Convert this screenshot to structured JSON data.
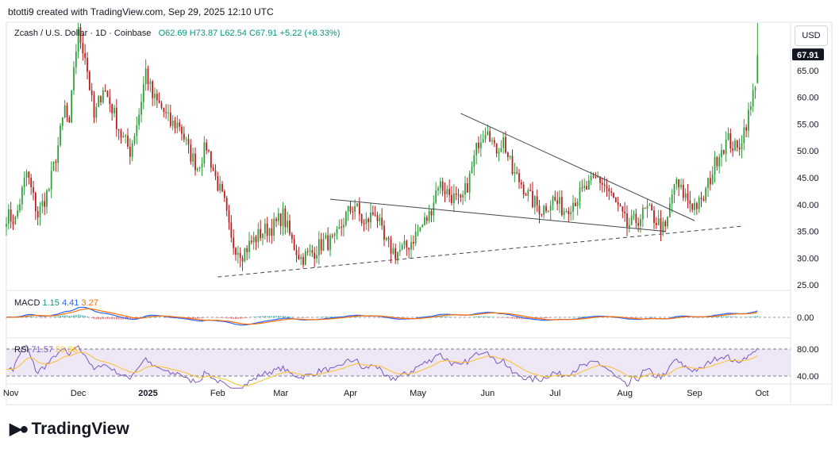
{
  "header": {
    "attribution": "btotti9 created with TradingView.com, Sep 29, 2025 12:10 UTC"
  },
  "legend": {
    "symbol": "Zcash / U.S. Dollar · 1D · Coinbase",
    "open": "O62.69",
    "high": "H73.87",
    "low": "L62.54",
    "close": "C67.91",
    "change": "+5.22 (+8.33%)"
  },
  "currency": "USD",
  "macd": {
    "label": "MACD",
    "v1": "1.15",
    "v2": "4.41",
    "v3": "3.27",
    "zero_label": "0.00"
  },
  "rsi": {
    "label": "RSI",
    "v1": "71.57",
    "v2": "59.36",
    "upper_label": "80.00",
    "lower_label": "40.00"
  },
  "footer": {
    "brand": "TradingView"
  },
  "colors": {
    "up": "#089981",
    "down": "#f23645",
    "candle_up": "#2e9e3a",
    "candle_down": "#b71c1c",
    "macd_line": "#2962ff",
    "signal_line": "#ff6d00",
    "rsi_line": "#7e57c2",
    "rsi_ma": "#fbc02d",
    "rsi_band": "#ede7f6",
    "price_tag": "#131722"
  },
  "chart_data": {
    "type": "candlestick",
    "title": "Zcash / U.S. Dollar · 1D · Coinbase",
    "y_ticks": [
      65,
      60,
      55,
      50,
      45,
      40,
      35,
      30,
      25
    ],
    "y_tick_labels": [
      "65.00",
      "60.00",
      "55.00",
      "50.00",
      "45.00",
      "40.00",
      "35.00",
      "30.00",
      "25.00"
    ],
    "ylim": [
      24,
      74
    ],
    "last_price_label": "67.91",
    "x_tick_labels": [
      "Nov",
      "Dec",
      "2025",
      "Feb",
      "Mar",
      "Apr",
      "May",
      "Jun",
      "Jul",
      "Aug",
      "Sep",
      "Oct"
    ],
    "x_ticks": [
      "2024-11-01",
      "2024-12-01",
      "2025-01-01",
      "2025-02-01",
      "2025-03-01",
      "2025-04-01",
      "2025-05-01",
      "2025-06-01",
      "2025-07-01",
      "2025-08-01",
      "2025-09-01",
      "2025-10-01"
    ],
    "x_range": [
      "2024-10-30",
      "2025-10-13"
    ],
    "close_path": [
      [
        "2024-10-30",
        38
      ],
      [
        "2024-11-03",
        37
      ],
      [
        "2024-11-08",
        46
      ],
      [
        "2024-11-13",
        38
      ],
      [
        "2024-11-18",
        43
      ],
      [
        "2024-11-22",
        51
      ],
      [
        "2024-11-25",
        58
      ],
      [
        "2024-11-27",
        54
      ],
      [
        "2024-11-29",
        66
      ],
      [
        "2024-12-01",
        72
      ],
      [
        "2024-12-04",
        68
      ],
      [
        "2024-12-08",
        56
      ],
      [
        "2024-12-12",
        62
      ],
      [
        "2024-12-16",
        58
      ],
      [
        "2024-12-20",
        53
      ],
      [
        "2024-12-24",
        50
      ],
      [
        "2024-12-28",
        57
      ],
      [
        "2024-12-31",
        65
      ],
      [
        "2025-01-03",
        60
      ],
      [
        "2025-01-07",
        58
      ],
      [
        "2025-01-11",
        55
      ],
      [
        "2025-01-15",
        55
      ],
      [
        "2025-01-19",
        50
      ],
      [
        "2025-01-23",
        47
      ],
      [
        "2025-01-27",
        51
      ],
      [
        "2025-01-31",
        45
      ],
      [
        "2025-02-04",
        40
      ],
      [
        "2025-02-07",
        33
      ],
      [
        "2025-02-12",
        31
      ],
      [
        "2025-02-16",
        33
      ],
      [
        "2025-02-21",
        35
      ],
      [
        "2025-02-26",
        36
      ],
      [
        "2025-03-02",
        38
      ],
      [
        "2025-03-06",
        33
      ],
      [
        "2025-03-10",
        30
      ],
      [
        "2025-03-15",
        31
      ],
      [
        "2025-03-20",
        33
      ],
      [
        "2025-03-25",
        33
      ],
      [
        "2025-03-30",
        38
      ],
      [
        "2025-04-03",
        40
      ],
      [
        "2025-04-07",
        36
      ],
      [
        "2025-04-12",
        39
      ],
      [
        "2025-04-16",
        33
      ],
      [
        "2025-04-21",
        31
      ],
      [
        "2025-04-26",
        32
      ],
      [
        "2025-05-01",
        35
      ],
      [
        "2025-05-06",
        38
      ],
      [
        "2025-05-10",
        44
      ],
      [
        "2025-05-15",
        42
      ],
      [
        "2025-05-20",
        40
      ],
      [
        "2025-05-24",
        45
      ],
      [
        "2025-05-28",
        52
      ],
      [
        "2025-06-01",
        55
      ],
      [
        "2025-06-04",
        50
      ],
      [
        "2025-06-08",
        52
      ],
      [
        "2025-06-12",
        46
      ],
      [
        "2025-06-16",
        44
      ],
      [
        "2025-06-20",
        41
      ],
      [
        "2025-06-25",
        39
      ],
      [
        "2025-06-30",
        41
      ],
      [
        "2025-07-05",
        39
      ],
      [
        "2025-07-10",
        41
      ],
      [
        "2025-07-15",
        43
      ],
      [
        "2025-07-20",
        45
      ],
      [
        "2025-07-24",
        43
      ],
      [
        "2025-07-28",
        40
      ],
      [
        "2025-08-02",
        36
      ],
      [
        "2025-08-06",
        37
      ],
      [
        "2025-08-11",
        39
      ],
      [
        "2025-08-15",
        37
      ],
      [
        "2025-08-19",
        35
      ],
      [
        "2025-08-23",
        44
      ],
      [
        "2025-08-27",
        42
      ],
      [
        "2025-08-31",
        40
      ],
      [
        "2025-09-04",
        40
      ],
      [
        "2025-09-08",
        45
      ],
      [
        "2025-09-12",
        50
      ],
      [
        "2025-09-16",
        52
      ],
      [
        "2025-09-20",
        50
      ],
      [
        "2025-09-23",
        54
      ],
      [
        "2025-09-26",
        58
      ],
      [
        "2025-09-28",
        63
      ],
      [
        "2025-09-29",
        67.91
      ]
    ],
    "trendlines": {
      "descending_resistance": [
        [
          "2025-05-20",
          57
        ],
        [
          "2025-09-01",
          37
        ]
      ],
      "descending_support": [
        [
          "2025-03-23",
          41
        ],
        [
          "2025-08-19",
          35
        ]
      ],
      "rising_support_dashed": [
        [
          "2025-02-01",
          26.5
        ],
        [
          "2025-09-23",
          36
        ]
      ]
    },
    "macd": {
      "macd": 1.15,
      "signal": 4.41,
      "histogram": 3.27
    },
    "rsi": {
      "rsi": 71.57,
      "ma": 59.36,
      "levels": [
        80,
        40
      ]
    }
  }
}
